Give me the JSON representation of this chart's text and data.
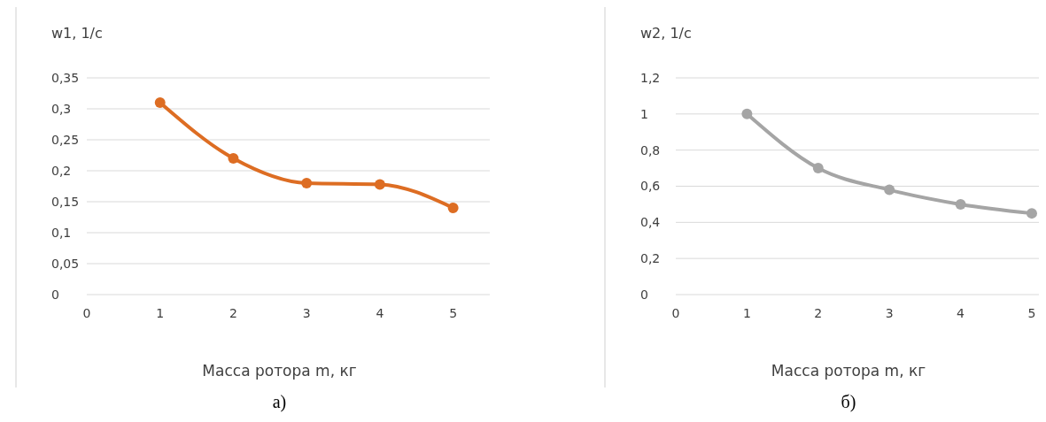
{
  "chart_data": [
    {
      "type": "line",
      "ylabel": "w1, 1/с",
      "xlabel": "Масса ротора m, кг",
      "x": [
        1,
        2,
        3,
        4,
        5
      ],
      "series": [
        {
          "color": "#dd6d23",
          "values": [
            0.31,
            0.22,
            0.18,
            0.178,
            0.14
          ]
        }
      ],
      "xlim": [
        0,
        5.5
      ],
      "xticks": [
        0,
        1,
        2,
        3,
        4,
        5
      ],
      "ylim": [
        0,
        0.35
      ],
      "yticks": [
        {
          "value": 0,
          "label": "0"
        },
        {
          "value": 0.05,
          "label": "0,05"
        },
        {
          "value": 0.1,
          "label": "0,1"
        },
        {
          "value": 0.15,
          "label": "0,15"
        },
        {
          "value": 0.2,
          "label": "0,2"
        },
        {
          "value": 0.25,
          "label": "0,25"
        },
        {
          "value": 0.3,
          "label": "0,3"
        },
        {
          "value": 0.35,
          "label": "0,35"
        }
      ],
      "grid": "y",
      "marker": "circle",
      "line_style": "solid",
      "annotations": [
        "а)"
      ]
    },
    {
      "type": "line",
      "ylabel": "w2, 1/с",
      "xlabel": "Масса ротора m, кг",
      "x": [
        1,
        2,
        3,
        4,
        5
      ],
      "series": [
        {
          "color": "#a5a5a5",
          "values": [
            1.0,
            0.7,
            0.58,
            0.5,
            0.45
          ]
        }
      ],
      "xlim": [
        0,
        5.1
      ],
      "xticks": [
        0,
        1,
        2,
        3,
        4,
        5
      ],
      "ylim": [
        0,
        1.2
      ],
      "yticks": [
        {
          "value": 0,
          "label": "0"
        },
        {
          "value": 0.2,
          "label": "0,2"
        },
        {
          "value": 0.4,
          "label": "0,4"
        },
        {
          "value": 0.6,
          "label": "0,6"
        },
        {
          "value": 0.8,
          "label": "0,8"
        },
        {
          "value": 1,
          "label": "1"
        },
        {
          "value": 1.2,
          "label": "1,2"
        }
      ],
      "grid": "y",
      "marker": "circle",
      "line_style": "solid",
      "annotations": [
        "б)"
      ]
    }
  ]
}
